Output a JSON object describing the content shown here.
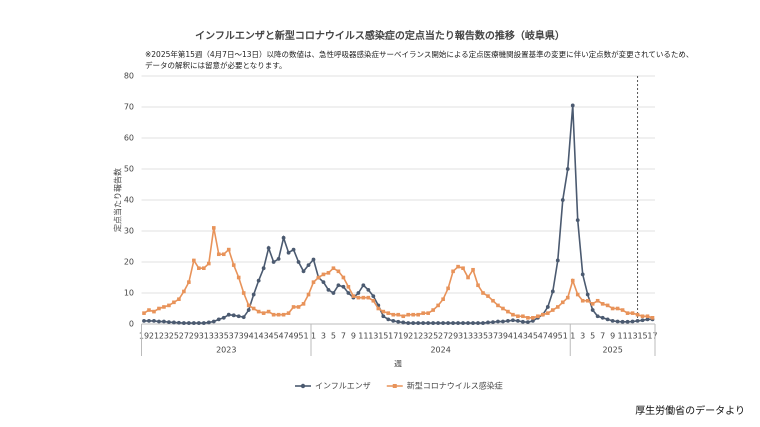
{
  "chart_data": {
    "type": "line",
    "title": "インフルエンザと新型コロナウイルス感染症の定点当たり報告数の推移（岐阜県）",
    "notes": [
      "※2025年第15週（4月7日～13日）以降の数値は、急性呼吸器感染症サーベイランス開始による定点医療機関設置基準の変更に伴い定点数が変更されているため、",
      "データの解釈には留意が必要となります。"
    ],
    "ylabel": "定点当たり報告数",
    "xlabel": "週",
    "source": "厚生労働省のデータより",
    "years": [
      "2023",
      "2024",
      "2025"
    ],
    "categories": [
      "19",
      null,
      "21",
      null,
      "23",
      null,
      "25",
      null,
      "27",
      null,
      "29",
      null,
      "31",
      null,
      "33",
      null,
      "35",
      null,
      "37",
      null,
      "39",
      null,
      "41",
      null,
      "43",
      null,
      "45",
      null,
      "47",
      null,
      "49",
      null,
      "51",
      null,
      "1",
      null,
      "3",
      null,
      "5",
      null,
      "7",
      null,
      "9",
      null,
      "11",
      null,
      "13",
      null,
      "15",
      null,
      "17",
      null,
      "19",
      null,
      "21",
      null,
      "23",
      null,
      "25",
      null,
      "27",
      null,
      "29",
      null,
      "31",
      null,
      "33",
      null,
      "35",
      null,
      "37",
      null,
      "39",
      null,
      "41",
      null,
      "43",
      null,
      "45",
      null,
      "47",
      null,
      "49",
      null,
      "51",
      null,
      "1",
      null,
      "3",
      null,
      "5",
      null,
      "7",
      null,
      "9",
      null,
      "11",
      null,
      "13",
      null,
      "15",
      null,
      "17"
    ],
    "series": [
      {
        "name": "インフルエンザ",
        "color": "#4b5a70",
        "marker": "circle",
        "values": [
          1,
          1,
          1,
          0.8,
          0.8,
          0.6,
          0.5,
          0.4,
          0.3,
          0.3,
          0.3,
          0.3,
          0.3,
          0.5,
          0.8,
          1.5,
          2,
          3,
          2.8,
          2.5,
          2.2,
          4.5,
          9.5,
          14,
          18,
          24.5,
          20,
          21,
          27.8,
          23,
          24,
          20,
          17,
          19,
          20.8,
          15,
          13.5,
          11,
          10,
          12.5,
          12,
          10,
          8.5,
          10,
          12.5,
          11,
          9,
          6,
          2.5,
          1.5,
          1,
          0.7,
          0.5,
          0.3,
          0.3,
          0.3,
          0.3,
          0.3,
          0.3,
          0.3,
          0.3,
          0.3,
          0.3,
          0.3,
          0.3,
          0.3,
          0.3,
          0.3,
          0.3,
          0.5,
          0.6,
          0.8,
          0.8,
          1,
          1.2,
          1,
          0.7,
          0.6,
          1,
          2,
          3,
          5.5,
          10.5,
          20.5,
          40,
          50,
          70.5,
          33.5,
          16,
          9.5,
          4.5,
          2.5,
          2,
          1.5,
          1,
          0.8,
          0.7,
          0.7,
          0.8,
          1,
          1.2,
          1.5,
          1.5
        ]
      },
      {
        "name": "新型コロナウイルス感染症",
        "color": "#e8935a",
        "marker": "square",
        "values": [
          3.5,
          4.5,
          4,
          5,
          5.5,
          6,
          7,
          8,
          10.5,
          13.5,
          20.5,
          18,
          18,
          19.5,
          31,
          22.5,
          22.5,
          24,
          19,
          15,
          10,
          6,
          5,
          4,
          3.5,
          4,
          3,
          3,
          3,
          3.5,
          5.5,
          5.5,
          6.5,
          9.5,
          13.5,
          15,
          16,
          16.5,
          18,
          17,
          15,
          12,
          9,
          8.5,
          8.5,
          8.5,
          7.5,
          5,
          4,
          3.5,
          3,
          3,
          2.5,
          3,
          3,
          3,
          3.5,
          3.5,
          4.5,
          6,
          8,
          11.5,
          17,
          18.5,
          18,
          15,
          17.5,
          12.5,
          10,
          9,
          7.5,
          6,
          5,
          4,
          3,
          2.5,
          2.5,
          2,
          2,
          2.5,
          3,
          3.5,
          4.5,
          5.5,
          7,
          8.5,
          14,
          9.5,
          7.5,
          7.5,
          6.5,
          7.5,
          6.5,
          6,
          5,
          5,
          4.5,
          3.5,
          3.5,
          3,
          2.5,
          2.5,
          2
        ]
      }
    ],
    "ylim": [
      0,
      80
    ],
    "yticks": [
      0,
      10,
      20,
      30,
      40,
      50,
      60,
      70,
      80
    ],
    "grid": true,
    "legend": "bottom"
  }
}
